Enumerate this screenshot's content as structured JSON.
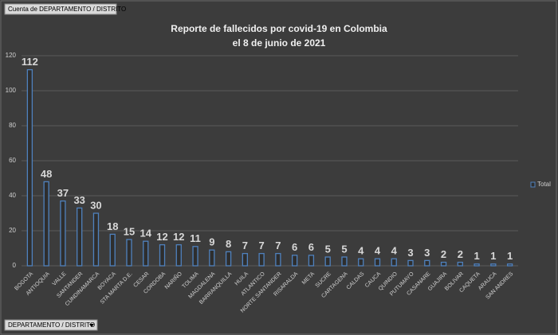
{
  "pivot_field_button": "Cuenta de DEPARTAMENTO / DISTRITO",
  "filter_button": "DEPARTAMENTO / DISTRITO",
  "chart_data": {
    "type": "bar",
    "title": "Reporte de fallecidos por covid-19 en Colombia",
    "subtitle": "el 8 de junio de 2021",
    "categories": [
      "BOGOTA",
      "ANTIOQUIA",
      "VALLE",
      "SANTANDER",
      "CUNDINAMARCA",
      "BOYACA",
      "STA MARTA D.E.",
      "CESAR",
      "CORDOBA",
      "NARIÑO",
      "TOLIMA",
      "MAGDALENA",
      "BARRANQUILLA",
      "HUILA",
      "ATLANTICO",
      "NORTE SANTANDER",
      "RISARALDA",
      "META",
      "SUCRE",
      "CARTAGENA",
      "CALDAS",
      "CAUCA",
      "QUINDIO",
      "PUTUMAYO",
      "CASANARE",
      "GUAJIRA",
      "BOLIVAR",
      "CAQUETA",
      "ARAUCA",
      "SAN ANDRES"
    ],
    "series": [
      {
        "name": "Total",
        "color": "#4f81bd",
        "values": [
          112,
          48,
          37,
          33,
          30,
          18,
          15,
          14,
          12,
          12,
          11,
          9,
          8,
          7,
          7,
          7,
          6,
          6,
          5,
          5,
          4,
          4,
          4,
          3,
          3,
          2,
          2,
          1,
          1,
          1
        ]
      }
    ],
    "ylim": [
      0,
      120
    ],
    "yticks": [
      0,
      20,
      40,
      60,
      80,
      100,
      120
    ],
    "grid": true,
    "legend": "right"
  }
}
